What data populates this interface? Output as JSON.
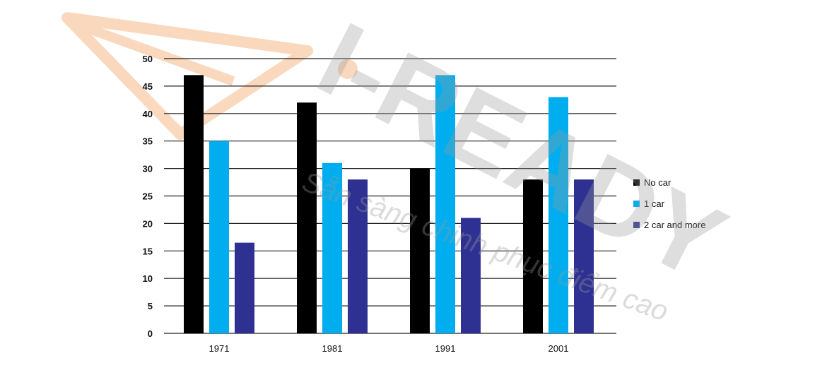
{
  "watermark": {
    "brand": "I-READY",
    "tagline": "Sẵn sàng chinh phục điểm cao",
    "brand_color": "#9a9a9a",
    "logo_color": "#f6b98a"
  },
  "chart_data": {
    "type": "bar",
    "title": "",
    "xlabel": "",
    "ylabel": "",
    "categories": [
      "1971",
      "1981",
      "1991",
      "2001"
    ],
    "ylim": [
      0,
      50
    ],
    "yticks": [
      "0",
      "5",
      "10",
      "15",
      "20",
      "25",
      "30",
      "35",
      "40",
      "45",
      "50"
    ],
    "grid": true,
    "legend_position": "right",
    "series": [
      {
        "name": "No car",
        "color": "#000000",
        "values": [
          47,
          42,
          30,
          28
        ]
      },
      {
        "name": "1 car",
        "color": "#00aeef",
        "values": [
          35,
          31,
          47,
          43
        ]
      },
      {
        "name": "2 car and more",
        "color": "#2e3192",
        "values": [
          16.5,
          28,
          21,
          28
        ]
      }
    ]
  }
}
